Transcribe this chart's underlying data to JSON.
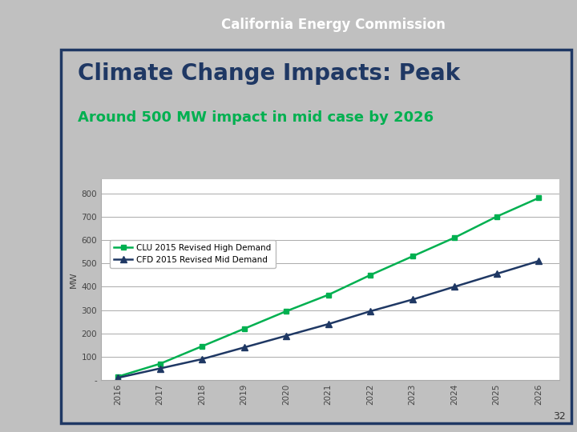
{
  "title": "Climate Change Impacts: Peak",
  "subtitle": "Around 500 MW impact in mid case by 2026",
  "ylabel": "MW",
  "header_text": "California Energy Commission",
  "page_number": "32",
  "years": [
    2016,
    2017,
    2018,
    2019,
    2020,
    2021,
    2022,
    2023,
    2024,
    2025,
    2026
  ],
  "high_demand": [
    15,
    70,
    145,
    220,
    295,
    365,
    450,
    530,
    610,
    700,
    780
  ],
  "mid_demand": [
    10,
    50,
    90,
    140,
    190,
    240,
    295,
    345,
    400,
    455,
    510
  ],
  "high_label": "CLU 2015 Revised High Demand",
  "mid_label": "CFD 2015 Revised Mid Demand",
  "high_color": "#00B050",
  "mid_color": "#1F3864",
  "yticks": [
    0,
    100,
    200,
    300,
    400,
    500,
    600,
    700,
    800
  ],
  "ytick_labels": [
    "-",
    "100",
    "200",
    "300",
    "400",
    "500",
    "600",
    "700",
    "800"
  ],
  "ylim": [
    0,
    860
  ],
  "header_bg": "#1F3864",
  "header_text_color": "#FFFFFF",
  "slide_bg": "#FFFFFF",
  "outer_bg": "#C0C0C0",
  "border_left_color": "#1F3864",
  "title_color": "#1F3864",
  "subtitle_color": "#00B050",
  "grid_color": "#AAAAAA",
  "tick_color": "#444444"
}
